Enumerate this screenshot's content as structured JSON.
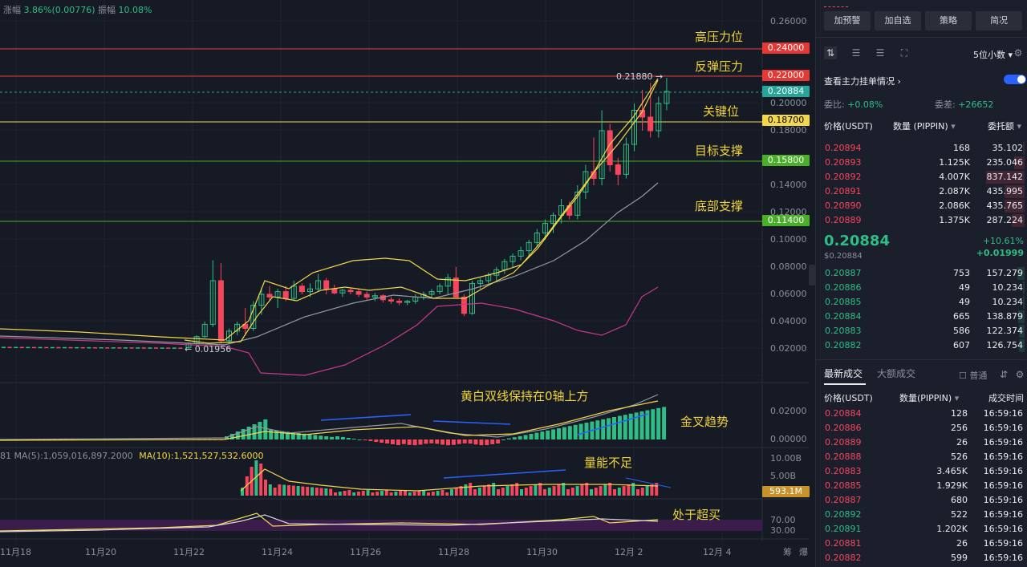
{
  "header_stats": {
    "change_label": "涨幅",
    "change_value": "3.86%(0.00776)",
    "amp_label": "振幅",
    "amp_value": "10.08%"
  },
  "annotations": {
    "high_resistance": "高压力位",
    "rebound_resistance": "反弹压力",
    "key_level": "关键位",
    "target_support": "目标支撑",
    "bottom_support": "底部支撑",
    "macd_note": "黄白双线保持在0轴上方",
    "golden_cross": "金叉趋势",
    "volume_note": "量能不足",
    "overbought": "处于超买"
  },
  "price_levels": [
    {
      "value": "0.24000",
      "color": "#e53935"
    },
    {
      "value": "0.22000",
      "color": "#e53935"
    },
    {
      "value": "0.20884",
      "color": "#26a69a"
    },
    {
      "value": "0.18700",
      "color": "#f2d64b"
    },
    {
      "value": "0.15800",
      "color": "#4caf2a"
    },
    {
      "value": "0.11400",
      "color": "#4caf2a"
    }
  ],
  "price_axis": [
    "0.26000",
    "0.20000",
    "0.18000",
    "0.14000",
    "0.12000",
    "0.10000",
    "0.08000",
    "0.06000",
    "0.04000",
    "0.02000"
  ],
  "macd_axis": [
    "0.02000",
    "0.00000"
  ],
  "vol_axis": [
    "10.00B",
    "5.00B"
  ],
  "vol_tag": "593.1M",
  "rsi_axis": [
    "70.00",
    "30.00"
  ],
  "high_mark": "0.21880",
  "low_mark": "0.01956",
  "ma_legend": {
    "ma5": "81  MA(5):1,059,016,897.2000",
    "ma10": "MA(10):1,521,527,532.6000"
  },
  "x_labels": [
    "11月18",
    "11月20",
    "11月22",
    "11月24",
    "11月26",
    "11月28",
    "11月30",
    "12月 2",
    "12月 4"
  ],
  "x_right": [
    "筹",
    "爆"
  ],
  "right_panel": {
    "buttons": [
      "加预警",
      "加自选",
      "策略",
      "简况"
    ],
    "precision": "5位小数",
    "depth_toggle_label": "查看主力挂单情况",
    "ratio_label": "委比:",
    "ratio_value": "+0.08%",
    "diff_label": "委差:",
    "diff_value": "+26652",
    "col_price": "价格(USDT)",
    "col_qty": "数量 (PIPPIN)",
    "col_total": "委托额",
    "asks": [
      {
        "p": "0.20894",
        "q": "168",
        "t": "35.102",
        "bar": 0.04
      },
      {
        "p": "0.20893",
        "q": "1.125K",
        "t": "235.046",
        "bar": 0.28
      },
      {
        "p": "0.20892",
        "q": "4.007K",
        "t": "837.142",
        "bar": 1.0
      },
      {
        "p": "0.20891",
        "q": "2.087K",
        "t": "435.995",
        "bar": 0.52
      },
      {
        "p": "0.20890",
        "q": "2.086K",
        "t": "435.765",
        "bar": 0.52
      },
      {
        "p": "0.20889",
        "q": "1.375K",
        "t": "287.224",
        "bar": 0.34
      }
    ],
    "last_price": "0.20884",
    "last_price_usd": "$0.20884",
    "change_pct": "+10.61%",
    "change_abs": "+0.01999",
    "bids": [
      {
        "p": "0.20887",
        "q": "753",
        "t": "157.279",
        "bar": 0.19
      },
      {
        "p": "0.20886",
        "q": "49",
        "t": "10.234",
        "bar": 0.01
      },
      {
        "p": "0.20885",
        "q": "49",
        "t": "10.234",
        "bar": 0.01
      },
      {
        "p": "0.20884",
        "q": "665",
        "t": "138.879",
        "bar": 0.17
      },
      {
        "p": "0.20883",
        "q": "586",
        "t": "122.374",
        "bar": 0.15
      },
      {
        "p": "0.20882",
        "q": "607",
        "t": "126.754",
        "bar": 0.15
      }
    ],
    "tab_latest": "最新成交",
    "tab_large": "大额成交",
    "normal_label": "普通",
    "trade_col_price": "价格(USDT)",
    "trade_col_qty": "数量(PIPPIN)",
    "trade_col_time": "成交时间",
    "trades": [
      {
        "p": "0.20884",
        "q": "128",
        "t": "16:59:16",
        "side": "sell"
      },
      {
        "p": "0.20886",
        "q": "256",
        "t": "16:59:16",
        "side": "sell"
      },
      {
        "p": "0.20889",
        "q": "26",
        "t": "16:59:16",
        "side": "sell"
      },
      {
        "p": "0.20888",
        "q": "526",
        "t": "16:59:16",
        "side": "sell"
      },
      {
        "p": "0.20883",
        "q": "3.465K",
        "t": "16:59:16",
        "side": "sell"
      },
      {
        "p": "0.20885",
        "q": "1.929K",
        "t": "16:59:16",
        "side": "sell"
      },
      {
        "p": "0.20887",
        "q": "680",
        "t": "16:59:16",
        "side": "sell"
      },
      {
        "p": "0.20892",
        "q": "522",
        "t": "16:59:16",
        "side": "buy"
      },
      {
        "p": "0.20891",
        "q": "1.202K",
        "t": "16:59:16",
        "side": "buy"
      },
      {
        "p": "0.20881",
        "q": "26",
        "t": "16:59:16",
        "side": "sell"
      },
      {
        "p": "0.20882",
        "q": "599",
        "t": "16:59:16",
        "side": "sell"
      }
    ]
  }
}
